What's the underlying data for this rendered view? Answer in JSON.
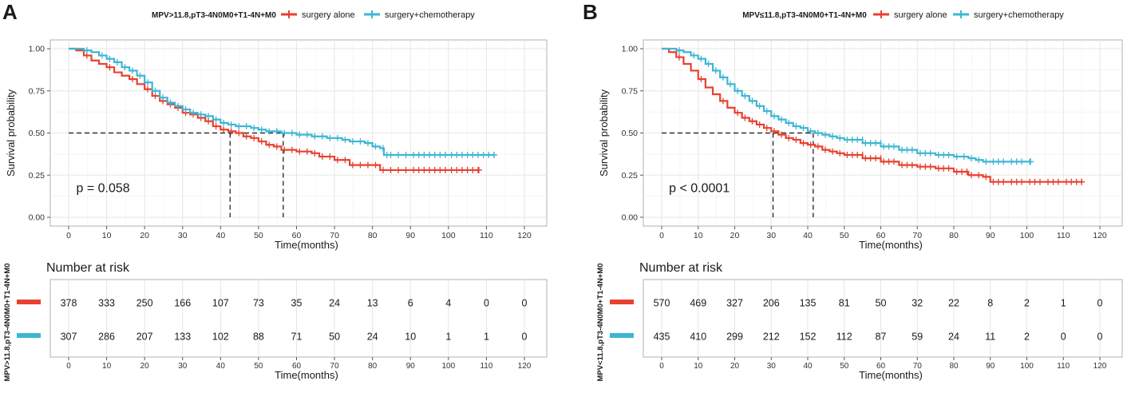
{
  "colors": {
    "surgery_alone": "#E8412F",
    "surgery_chemo": "#3DB6D3",
    "grid": "#E6E6E6",
    "panel_border": "#B0B0B0",
    "text": "#1A1A1A",
    "axis_text": "#333333"
  },
  "chart_data": [
    {
      "panel_label": "A",
      "type": "line",
      "subtype": "kaplan-meier",
      "legend_title": "MPV>11.8,pT3-4N0M0+T1-4N+M0",
      "xlabel": "Time(months)",
      "ylabel": "Survival probability",
      "xlim": [
        0,
        120
      ],
      "ylim": [
        0,
        1
      ],
      "xticks": [
        0,
        10,
        20,
        30,
        40,
        50,
        60,
        70,
        80,
        90,
        100,
        110,
        120
      ],
      "yticks": [
        "0.00",
        "0.25",
        "0.50",
        "0.75",
        "1.00"
      ],
      "grid": true,
      "pvalue": "p = 0.058",
      "median_survival": [
        42.5,
        56.5
      ],
      "series": [
        {
          "name": "surgery alone",
          "x": [
            0,
            2,
            4,
            6,
            8,
            10,
            12,
            14,
            16,
            18,
            20,
            22,
            24,
            26,
            28,
            30,
            32,
            34,
            36,
            38,
            40,
            42,
            44,
            46,
            48,
            50,
            52,
            54,
            56,
            58,
            60,
            62,
            64,
            66,
            68,
            70,
            72,
            74,
            76,
            78,
            80,
            82,
            84,
            86,
            88,
            90,
            100,
            108
          ],
          "y": [
            1.0,
            0.99,
            0.96,
            0.93,
            0.91,
            0.89,
            0.86,
            0.84,
            0.82,
            0.79,
            0.76,
            0.72,
            0.69,
            0.67,
            0.65,
            0.62,
            0.61,
            0.59,
            0.57,
            0.54,
            0.52,
            0.51,
            0.5,
            0.48,
            0.47,
            0.45,
            0.43,
            0.42,
            0.4,
            0.4,
            0.39,
            0.39,
            0.38,
            0.36,
            0.36,
            0.34,
            0.34,
            0.31,
            0.31,
            0.31,
            0.31,
            0.28,
            0.28,
            0.28,
            0.28,
            0.28,
            0.28,
            0.28
          ]
        },
        {
          "name": "surgery+chemotherapy",
          "x": [
            0,
            2,
            4,
            6,
            8,
            10,
            12,
            14,
            16,
            18,
            20,
            22,
            24,
            26,
            28,
            30,
            32,
            34,
            36,
            38,
            40,
            42,
            44,
            46,
            48,
            50,
            52,
            54,
            56,
            58,
            60,
            62,
            64,
            66,
            68,
            70,
            72,
            74,
            76,
            78,
            80,
            82,
            83,
            84,
            86,
            88,
            90,
            100,
            112
          ],
          "y": [
            1.0,
            1.0,
            0.99,
            0.98,
            0.96,
            0.94,
            0.92,
            0.89,
            0.87,
            0.84,
            0.8,
            0.75,
            0.71,
            0.68,
            0.66,
            0.64,
            0.62,
            0.61,
            0.6,
            0.58,
            0.56,
            0.55,
            0.54,
            0.54,
            0.53,
            0.52,
            0.51,
            0.51,
            0.5,
            0.5,
            0.49,
            0.49,
            0.48,
            0.48,
            0.47,
            0.47,
            0.46,
            0.45,
            0.45,
            0.44,
            0.42,
            0.41,
            0.37,
            0.37,
            0.37,
            0.37,
            0.37,
            0.37,
            0.37
          ]
        }
      ],
      "risk_table": {
        "title": "Number at risk",
        "strata_label": "MPV>11.8,pT3-4N0M0+T1-4N+M0",
        "xlabel": "Time(months)",
        "rows": [
          {
            "name": "surgery alone",
            "values": [
              "378",
              "333",
              "250",
              "166",
              "107",
              "73",
              "35",
              "24",
              "13",
              "6",
              "4",
              "0",
              "0"
            ]
          },
          {
            "name": "surgery+chemotherapy",
            "values": [
              "307",
              "286",
              "207",
              "133",
              "102",
              "88",
              "71",
              "50",
              "24",
              "10",
              "1",
              "1",
              "0"
            ]
          }
        ]
      }
    },
    {
      "panel_label": "B",
      "type": "line",
      "subtype": "kaplan-meier",
      "legend_title": "MPV≤11.8,pT3-4N0M0+T1-4N+M0",
      "xlabel": "Time(months)",
      "ylabel": "Survival probability",
      "xlim": [
        0,
        120
      ],
      "ylim": [
        0,
        1
      ],
      "xticks": [
        0,
        10,
        20,
        30,
        40,
        50,
        60,
        70,
        80,
        90,
        100,
        110,
        120
      ],
      "yticks": [
        "0.00",
        "0.25",
        "0.50",
        "0.75",
        "1.00"
      ],
      "grid": true,
      "pvalue": "p < 0.0001",
      "median_survival": [
        30.5,
        41.5
      ],
      "series": [
        {
          "name": "surgery alone",
          "x": [
            0,
            2,
            4,
            6,
            8,
            10,
            12,
            14,
            16,
            18,
            20,
            22,
            24,
            26,
            28,
            30,
            32,
            34,
            36,
            38,
            40,
            42,
            44,
            46,
            48,
            50,
            55,
            60,
            65,
            70,
            75,
            80,
            84,
            86,
            88,
            90,
            95,
            100,
            105,
            110,
            115
          ],
          "y": [
            1.0,
            0.98,
            0.95,
            0.91,
            0.87,
            0.82,
            0.77,
            0.73,
            0.69,
            0.65,
            0.62,
            0.59,
            0.57,
            0.55,
            0.53,
            0.51,
            0.49,
            0.47,
            0.46,
            0.44,
            0.43,
            0.42,
            0.4,
            0.39,
            0.38,
            0.37,
            0.35,
            0.33,
            0.31,
            0.3,
            0.29,
            0.27,
            0.25,
            0.25,
            0.24,
            0.21,
            0.21,
            0.21,
            0.21,
            0.21,
            0.21
          ]
        },
        {
          "name": "surgery+chemotherapy",
          "x": [
            0,
            2,
            4,
            6,
            8,
            10,
            12,
            14,
            16,
            18,
            20,
            22,
            24,
            26,
            28,
            30,
            32,
            34,
            36,
            38,
            40,
            42,
            44,
            46,
            48,
            50,
            55,
            60,
            65,
            70,
            75,
            80,
            82,
            84,
            86,
            88,
            90,
            95,
            100,
            101
          ],
          "y": [
            1.0,
            1.0,
            0.99,
            0.98,
            0.96,
            0.94,
            0.91,
            0.87,
            0.83,
            0.79,
            0.75,
            0.72,
            0.69,
            0.66,
            0.63,
            0.6,
            0.58,
            0.56,
            0.54,
            0.53,
            0.51,
            0.5,
            0.49,
            0.48,
            0.47,
            0.46,
            0.44,
            0.42,
            0.4,
            0.38,
            0.37,
            0.36,
            0.36,
            0.35,
            0.34,
            0.33,
            0.33,
            0.33,
            0.33,
            0.33
          ]
        }
      ],
      "risk_table": {
        "title": "Number at risk",
        "strata_label": "MPV<11.8,pT3-4N0M0+T1-4N+M0",
        "xlabel": "Time(months)",
        "rows": [
          {
            "name": "surgery alone",
            "values": [
              "570",
              "469",
              "327",
              "206",
              "135",
              "81",
              "50",
              "32",
              "22",
              "8",
              "2",
              "1",
              "0"
            ]
          },
          {
            "name": "surgery+chemotherapy",
            "values": [
              "435",
              "410",
              "299",
              "212",
              "152",
              "112",
              "87",
              "59",
              "24",
              "11",
              "2",
              "0",
              "0"
            ]
          }
        ]
      }
    }
  ]
}
